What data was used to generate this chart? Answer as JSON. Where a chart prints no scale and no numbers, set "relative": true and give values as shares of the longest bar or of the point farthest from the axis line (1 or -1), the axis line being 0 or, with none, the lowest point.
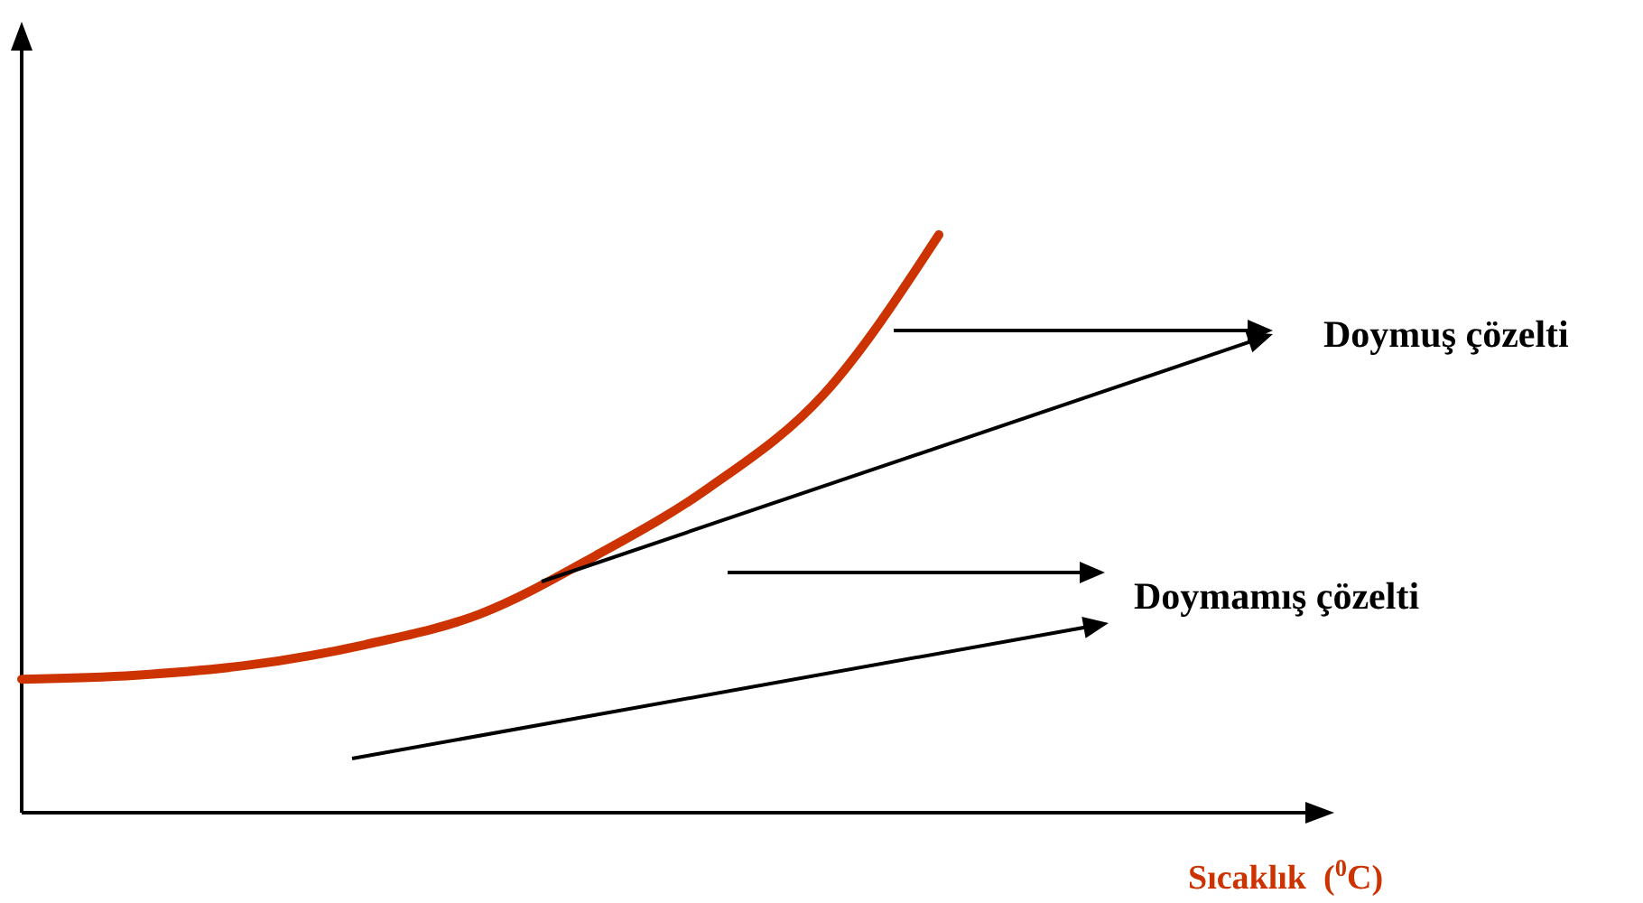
{
  "chart_data": {
    "type": "line",
    "relative": true,
    "categories": [
      null,
      null,
      null,
      null,
      null,
      null,
      null,
      null,
      null
    ],
    "series": [
      {
        "color": "#cc3300",
        "values": [
          0.231,
          0.238,
          0.256,
          0.291,
          0.344,
          0.444,
          0.563,
          0.725,
          1
        ]
      }
    ],
    "annotations": [
      "Doymuş çözelti",
      "Doymamış çözelti",
      "Sıcaklık  ($^{0}$C)"
    ]
  }
}
